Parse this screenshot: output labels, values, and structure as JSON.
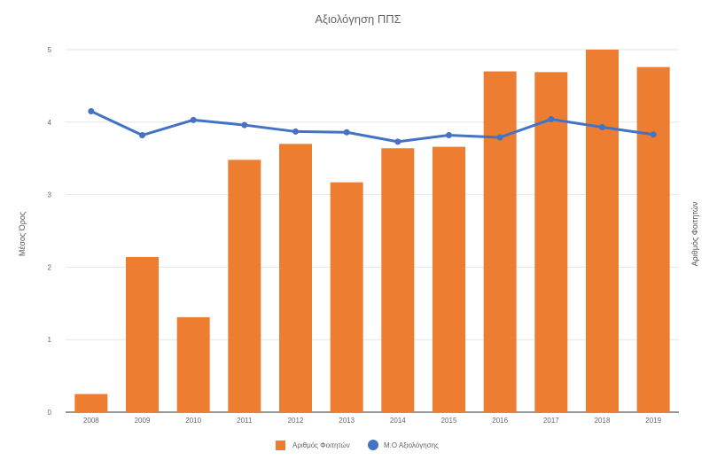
{
  "chart_data": {
    "type": "bar",
    "title": "Αξιολόγηση ΠΠΣ",
    "ylabel": "Μέσος Όρος",
    "y2label": "Αριθμός Φοιτητών",
    "categories": [
      "2008",
      "2009",
      "2010",
      "2011",
      "2012",
      "2013",
      "2014",
      "2015",
      "2016",
      "2017",
      "2018",
      "2019"
    ],
    "ylim": [
      0,
      5
    ],
    "yticks": [
      "0",
      "1",
      "2",
      "3",
      "4",
      "5"
    ],
    "grid": true,
    "legend_position": "bottom",
    "series": [
      {
        "name": "Αριθμός Φοιτητών",
        "type": "bar",
        "color": "#ed7d31",
        "values": [
          0.25,
          2.14,
          1.31,
          3.48,
          3.7,
          3.17,
          3.64,
          3.66,
          4.7,
          4.69,
          5.0,
          4.76
        ]
      },
      {
        "name": "Μ.Ο Αξιολόγησης",
        "type": "line",
        "color": "#4472c4",
        "values": [
          4.15,
          3.82,
          4.03,
          3.96,
          3.87,
          3.86,
          3.73,
          3.82,
          3.79,
          4.04,
          3.93,
          3.83
        ]
      }
    ]
  }
}
